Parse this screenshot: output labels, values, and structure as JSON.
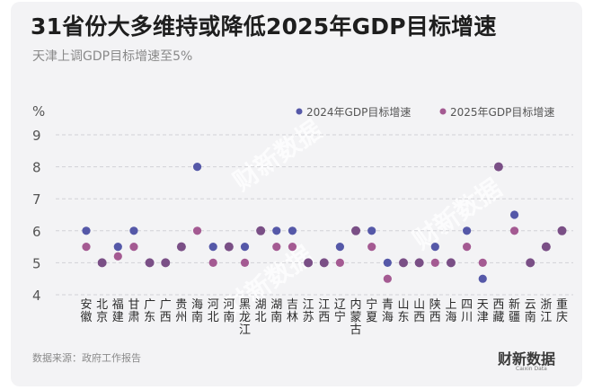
{
  "header": {
    "title": "31省份大多维持或降低2025年GDP目标增速",
    "subtitle": "天津上调GDP目标增速至5%"
  },
  "footer": {
    "source": "数据来源：政府工作报告",
    "brand": "财新数据",
    "brand_sub": "Caixin Data",
    "watermark": "财新数据"
  },
  "colors": {
    "series_2024": "#5558a8",
    "series_2025": "#a45a92",
    "overlap": "#7a4f86",
    "grid": "#d2d2d6",
    "background": "#f3f3f5"
  },
  "chart_data": {
    "type": "scatter",
    "ylabel": "%",
    "ylim": [
      4,
      9
    ],
    "yticks": [
      "4",
      "5",
      "6",
      "7",
      "8",
      "9"
    ],
    "grid": true,
    "legend_position": "top-right",
    "categories": [
      "安徽",
      "北京",
      "福建",
      "甘肃",
      "广东",
      "广西",
      "贵州",
      "海南",
      "河北",
      "河南",
      "黑龙江",
      "湖北",
      "湖南",
      "吉林",
      "江苏",
      "江西",
      "辽宁",
      "内蒙古",
      "宁夏",
      "青海",
      "山东",
      "山西",
      "陕西",
      "上海",
      "四川",
      "天津",
      "西藏",
      "新疆",
      "云南",
      "浙江",
      "重庆"
    ],
    "series": [
      {
        "name": "2024年GDP目标增速",
        "values": [
          6,
          5,
          5.5,
          6,
          5,
          5,
          5.5,
          8,
          5.5,
          5.5,
          5.5,
          6,
          6,
          6,
          5,
          5,
          5.5,
          6,
          6,
          5,
          5,
          5,
          5.5,
          5,
          6,
          4.5,
          8,
          6.5,
          5,
          5.5,
          6
        ]
      },
      {
        "name": "2025年GDP目标增速",
        "values": [
          5.5,
          5,
          5.2,
          5.5,
          5,
          5,
          5.5,
          6,
          5,
          5.5,
          5,
          6,
          5.5,
          5.5,
          5,
          5,
          5,
          6,
          5.5,
          4.5,
          5,
          5,
          5,
          5,
          5.5,
          5,
          8,
          6,
          5,
          5.5,
          6
        ]
      }
    ]
  }
}
